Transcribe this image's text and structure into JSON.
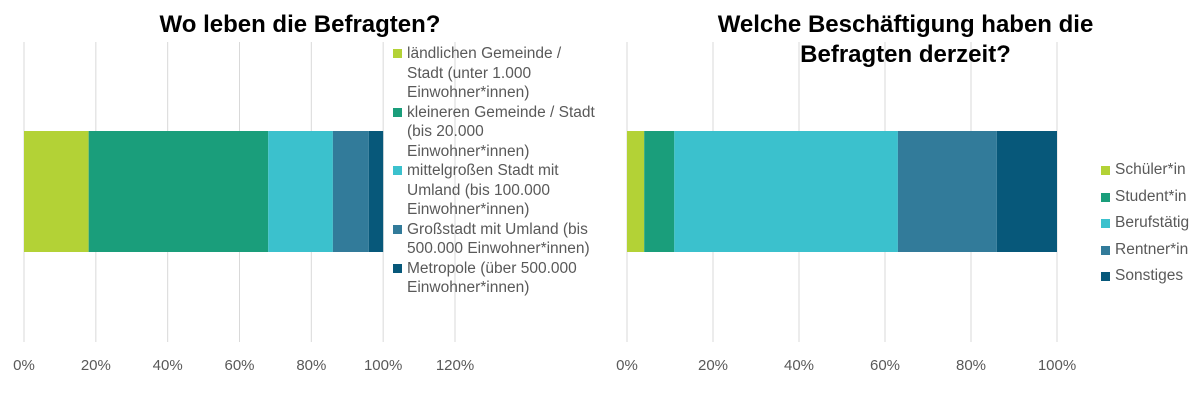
{
  "chart_data": [
    {
      "type": "bar",
      "orientation": "horizontal",
      "stacked": true,
      "title": "Wo leben die Befragten?",
      "xlim": [
        0,
        120
      ],
      "xticks": [
        "0%",
        "20%",
        "40%",
        "60%",
        "80%",
        "100%",
        "120%"
      ],
      "grid": true,
      "legend_position": "right",
      "series": [
        {
          "name": "ländlichen Gemeinde / Stadt (unter 1.000 Einwohner*innen)",
          "value": 18,
          "color": "#b3d236"
        },
        {
          "name": "kleineren Gemeinde / Stadt (bis 20.000 Einwohner*innen)",
          "value": 50,
          "color": "#1a9e7b"
        },
        {
          "name": "mittelgroßen Stadt mit Umland (bis 100.000 Einwohner*innen)",
          "value": 18,
          "color": "#3bc1cd"
        },
        {
          "name": "Großstadt mit Umland (bis 500.000 Einwohner*innen)",
          "value": 10,
          "color": "#327b9a"
        },
        {
          "name": "Metropole (über 500.000 Einwohner*innen)",
          "value": 4,
          "color": "#07587a"
        }
      ]
    },
    {
      "type": "bar",
      "orientation": "horizontal",
      "stacked": true,
      "title": "Welche Beschäftigung haben die Befragten derzeit?",
      "xlim": [
        0,
        100
      ],
      "xticks": [
        "0%",
        "20%",
        "40%",
        "60%",
        "80%",
        "100%"
      ],
      "grid": true,
      "legend_position": "right",
      "series": [
        {
          "name": "Schüler*in",
          "value": 4,
          "color": "#b3d236"
        },
        {
          "name": "Student*in",
          "value": 7,
          "color": "#1a9e7b"
        },
        {
          "name": "Berufstätig",
          "value": 52,
          "color": "#3bc1cd"
        },
        {
          "name": "Rentner*in",
          "value": 23,
          "color": "#327b9a"
        },
        {
          "name": "Sonstiges",
          "value": 14,
          "color": "#07587a"
        }
      ]
    }
  ]
}
